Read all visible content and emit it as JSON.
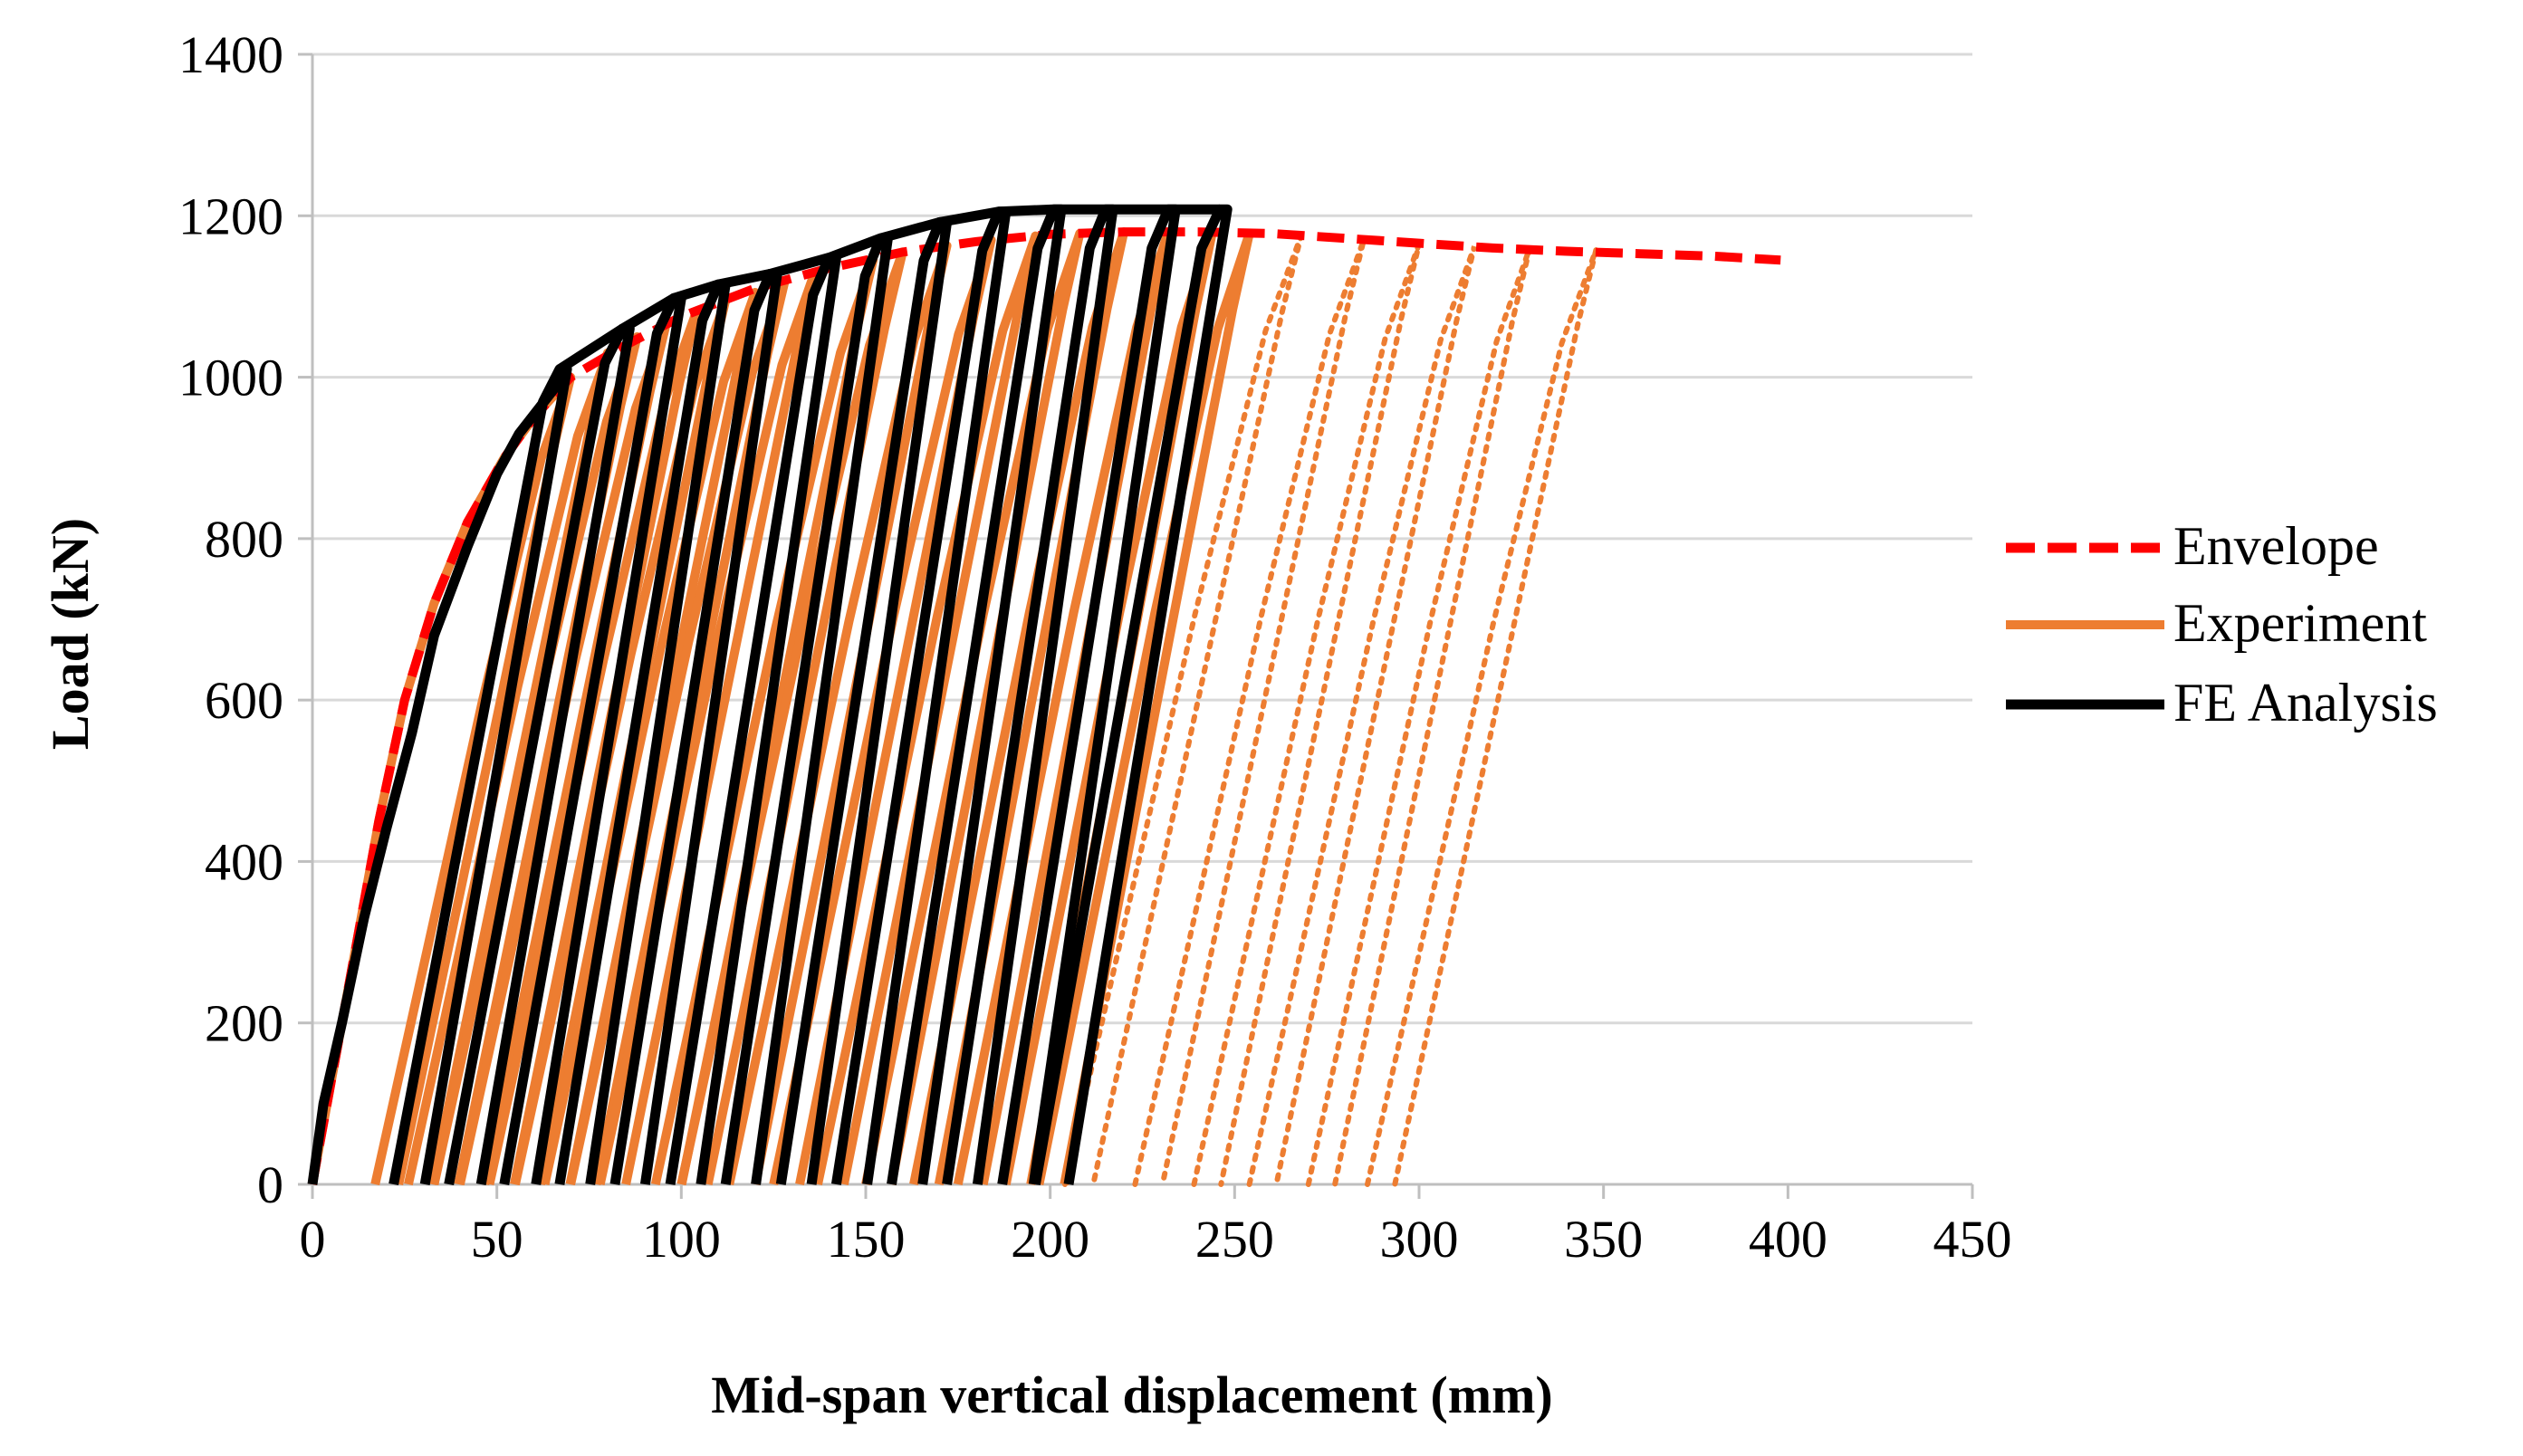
{
  "chart_data": {
    "type": "line",
    "title": "",
    "xlabel": "Mid-span vertical displacement (mm)",
    "ylabel": "Load (kN)",
    "xlim": [
      0,
      450
    ],
    "ylim": [
      0,
      1400
    ],
    "x_ticks": [
      0,
      50,
      100,
      150,
      200,
      250,
      300,
      350,
      400,
      450
    ],
    "y_ticks": [
      0,
      200,
      400,
      600,
      800,
      1000,
      1200,
      1400
    ],
    "x_tick_labels": [
      "0",
      "50",
      "100",
      "150",
      "200",
      "250",
      "300",
      "350",
      "400",
      "450"
    ],
    "y_tick_labels": [
      "0",
      "200",
      "400",
      "600",
      "800",
      "1000",
      "1200",
      "1400"
    ],
    "grid": "horizontal",
    "legend_position": "right",
    "colors": {
      "envelope": "#ff0000",
      "experiment": "#ed7d31",
      "fe": "#000000",
      "grid": "#d9d9d9",
      "axis": "#bfbfbf"
    },
    "envelope": {
      "name": "Envelope",
      "points": [
        [
          0,
          0
        ],
        [
          2,
          50
        ],
        [
          6,
          150
        ],
        [
          12,
          300
        ],
        [
          18,
          450
        ],
        [
          25,
          600
        ],
        [
          33,
          720
        ],
        [
          42,
          820
        ],
        [
          52,
          900
        ],
        [
          60,
          950
        ],
        [
          70,
          1000
        ],
        [
          85,
          1040
        ],
        [
          100,
          1075
        ],
        [
          120,
          1110
        ],
        [
          140,
          1135
        ],
        [
          160,
          1155
        ],
        [
          180,
          1168
        ],
        [
          200,
          1177
        ],
        [
          220,
          1180
        ],
        [
          240,
          1180
        ],
        [
          260,
          1178
        ],
        [
          280,
          1172
        ],
        [
          300,
          1166
        ],
        [
          320,
          1160
        ],
        [
          340,
          1156
        ],
        [
          360,
          1153
        ],
        [
          380,
          1150
        ],
        [
          398,
          1145
        ]
      ]
    },
    "experiment": {
      "name": "Experiment",
      "initial": [
        [
          0,
          0
        ],
        [
          2,
          50
        ],
        [
          6,
          150
        ],
        [
          12,
          300
        ],
        [
          18,
          450
        ],
        [
          25,
          600
        ],
        [
          33,
          720
        ],
        [
          42,
          820
        ],
        [
          52,
          900
        ],
        [
          60,
          950
        ],
        [
          70,
          1000
        ]
      ],
      "cycles": [
        {
          "x0": 17,
          "xp": 70,
          "yp": 1000
        },
        {
          "x0": 26,
          "xp": 80,
          "yp": 1030
        },
        {
          "x0": 33,
          "xp": 88,
          "yp": 1050
        },
        {
          "x0": 40,
          "xp": 96,
          "yp": 1068
        },
        {
          "x0": 48,
          "xp": 104,
          "yp": 1080
        },
        {
          "x0": 55,
          "xp": 112,
          "yp": 1095
        },
        {
          "x0": 63,
          "xp": 120,
          "yp": 1105
        },
        {
          "x0": 70,
          "xp": 128,
          "yp": 1118
        },
        {
          "x0": 78,
          "xp": 136,
          "yp": 1128
        },
        {
          "x0": 93,
          "xp": 152,
          "yp": 1145
        },
        {
          "x0": 100,
          "xp": 160,
          "yp": 1155
        },
        {
          "x0": 113,
          "xp": 172,
          "yp": 1163
        },
        {
          "x0": 125,
          "xp": 184,
          "yp": 1170
        },
        {
          "x0": 137,
          "xp": 196,
          "yp": 1175
        },
        {
          "x0": 150,
          "xp": 208,
          "yp": 1178
        },
        {
          "x0": 163,
          "xp": 220,
          "yp": 1180
        },
        {
          "x0": 175,
          "xp": 232,
          "yp": 1180
        },
        {
          "x0": 188,
          "xp": 244,
          "yp": 1180
        },
        {
          "x0": 197,
          "xp": 254,
          "yp": 1178
        }
      ],
      "dotted_cycles": [
        {
          "x0": 204,
          "xp": 268,
          "yp": 1175
        },
        {
          "x0": 223,
          "xp": 285,
          "yp": 1170
        },
        {
          "x0": 239,
          "xp": 300,
          "yp": 1165
        },
        {
          "x0": 254,
          "xp": 315,
          "yp": 1162
        },
        {
          "x0": 270,
          "xp": 330,
          "yp": 1160
        },
        {
          "x0": 286,
          "xp": 348,
          "yp": 1158
        }
      ]
    },
    "fe_analysis": {
      "name": "FE Analysis",
      "initial": [
        [
          0,
          0
        ],
        [
          3,
          100
        ],
        [
          8,
          200
        ],
        [
          14,
          330
        ],
        [
          20,
          440
        ],
        [
          27,
          560
        ],
        [
          33,
          680
        ],
        [
          42,
          790
        ],
        [
          50,
          880
        ],
        [
          56,
          930
        ],
        [
          62,
          965
        ],
        [
          68,
          1000
        ]
      ],
      "cycles": [
        {
          "x0": 22,
          "xp": 67,
          "yp": 1010
        },
        {
          "x0": 37,
          "xp": 84,
          "yp": 1060
        },
        {
          "x0": 52,
          "xp": 98,
          "yp": 1098
        },
        {
          "x0": 67,
          "xp": 110,
          "yp": 1115
        },
        {
          "x0": 82,
          "xp": 124,
          "yp": 1128
        },
        {
          "x0": 97,
          "xp": 140,
          "yp": 1148
        },
        {
          "x0": 112,
          "xp": 154,
          "yp": 1172
        },
        {
          "x0": 127,
          "xp": 170,
          "yp": 1192
        },
        {
          "x0": 142,
          "xp": 186,
          "yp": 1205
        },
        {
          "x0": 157,
          "xp": 201,
          "yp": 1208
        },
        {
          "x0": 172,
          "xp": 215,
          "yp": 1208
        },
        {
          "x0": 187,
          "xp": 232,
          "yp": 1208
        },
        {
          "x0": 196,
          "xp": 246,
          "yp": 1208
        }
      ]
    }
  }
}
